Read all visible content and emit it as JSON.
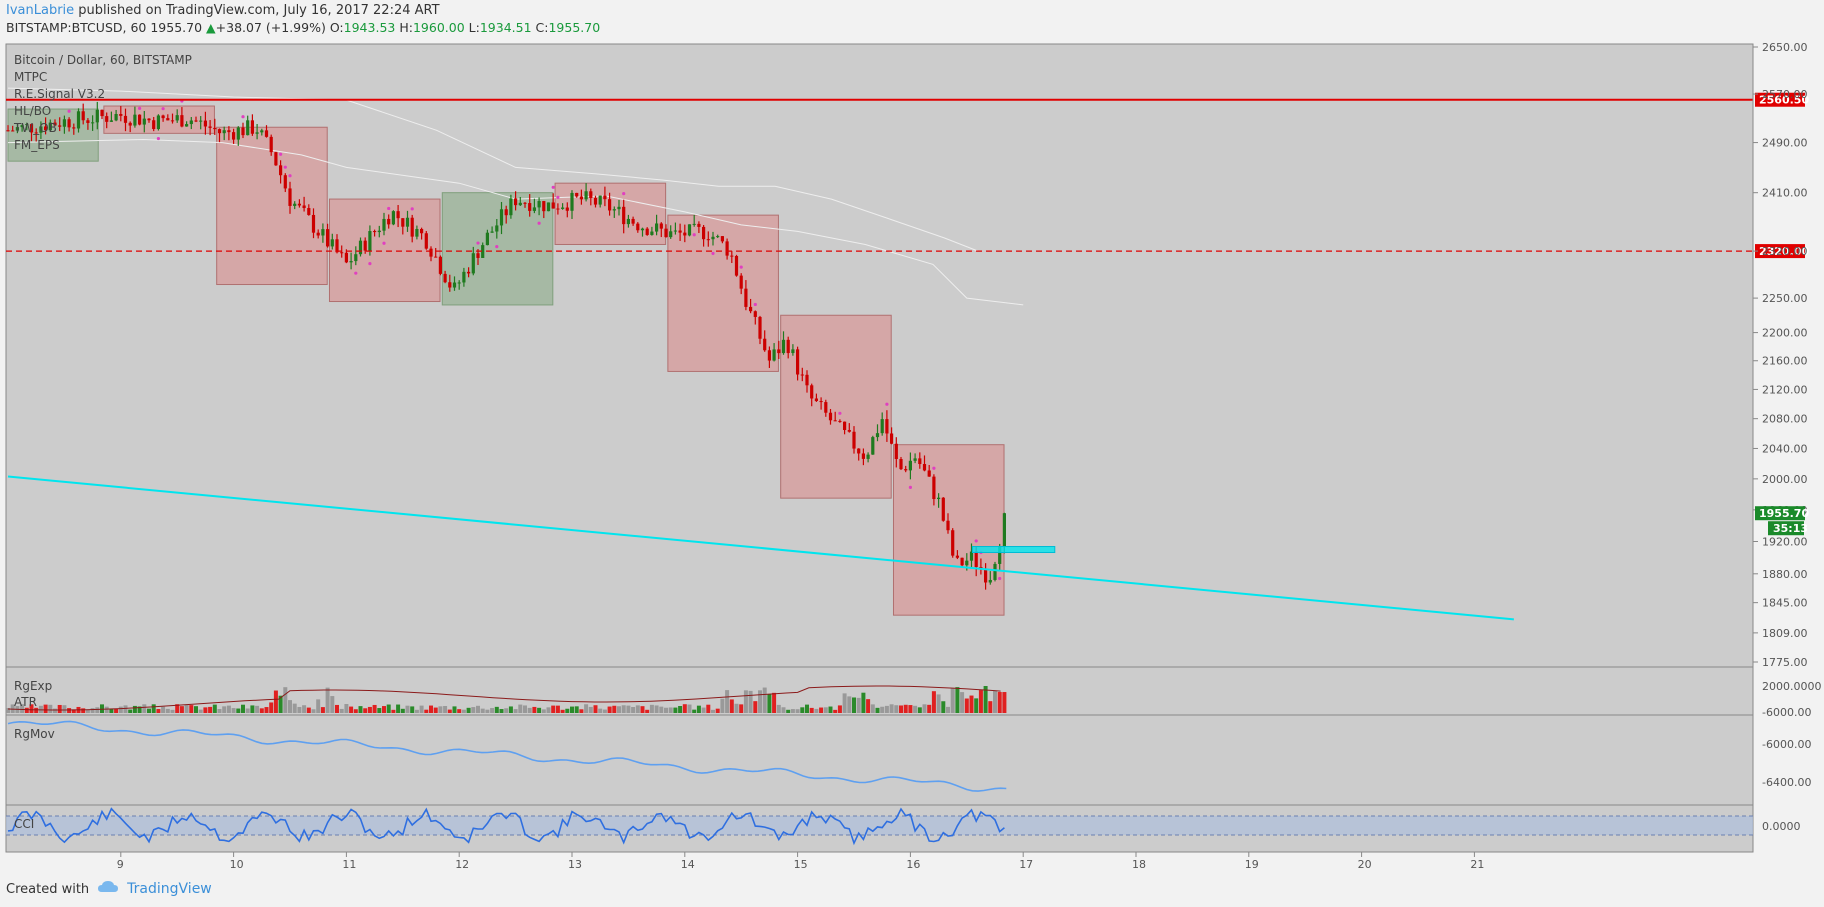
{
  "header": {
    "author": "IvanLabrie",
    "published": "published on TradingView.com, July 16, 2017 22:24 ART",
    "symbol": "BITSTAMP:BTCUSD, 60",
    "last": "1955.70",
    "change": "+38.07 (+1.99%)",
    "o_label": "O:",
    "o": "1943.53",
    "h_label": "H:",
    "h": "1960.00",
    "l_label": "L:",
    "l": "1934.51",
    "c_label": "C:",
    "c": "1955.70"
  },
  "legend": {
    "title": "Bitcoin / Dollar, 60, BITSTAMP",
    "items": [
      "MTPC",
      "R.E.Signal V3.2",
      "HL/BO",
      "TW_OB",
      "FM_EPS"
    ]
  },
  "panes": {
    "vol_labels": [
      "RgExp",
      "ATR"
    ],
    "vol_axis": "2000.0000",
    "mov_label": "RgMov",
    "mov_axis": [
      "-6000.00",
      "-6000.00",
      "-6400.00"
    ],
    "cci_label": "CCI",
    "cci_axis": "0.0000"
  },
  "footer": {
    "created": "Created with",
    "brand": "TradingView"
  },
  "colors": {
    "up": "#1f7a1f",
    "down": "#cc0000",
    "cyan": "#00e5ee",
    "level": "#e00000",
    "bg": "#cccccc"
  },
  "chart_data": {
    "type": "line",
    "x_ticks": [
      "9",
      "10",
      "11",
      "12",
      "13",
      "14",
      "15",
      "16",
      "17",
      "18",
      "19",
      "20",
      "21"
    ],
    "y_ticks": [
      2650,
      2570,
      2490,
      2410,
      2320,
      2250,
      2200,
      2160,
      2120,
      2080,
      2040,
      2000,
      1960,
      1920,
      1880,
      1845,
      1809,
      1775
    ],
    "y_tick_labels": [
      "2650.00",
      "2570.00",
      "2490.00",
      "2410.00",
      "2320.00",
      "2250.00",
      "2200.00",
      "2160.00",
      "2120.00",
      "2080.00",
      "2040.00",
      "2000.00",
      "1960.00",
      "1920.00",
      "1880.00",
      "1845.00",
      "1809.00",
      "1775.00"
    ],
    "price_path": [
      [
        8.0,
        2510
      ],
      [
        8.5,
        2525
      ],
      [
        9.0,
        2535
      ],
      [
        9.3,
        2525
      ],
      [
        9.6,
        2530
      ],
      [
        9.9,
        2505
      ],
      [
        10.2,
        2515
      ],
      [
        10.35,
        2470
      ],
      [
        10.5,
        2400
      ],
      [
        10.8,
        2340
      ],
      [
        11.0,
        2300
      ],
      [
        11.2,
        2340
      ],
      [
        11.4,
        2380
      ],
      [
        11.7,
        2340
      ],
      [
        11.95,
        2260
      ],
      [
        12.2,
        2330
      ],
      [
        12.5,
        2400
      ],
      [
        12.8,
        2390
      ],
      [
        13.1,
        2400
      ],
      [
        13.3,
        2390
      ],
      [
        13.6,
        2360
      ],
      [
        13.9,
        2345
      ],
      [
        14.2,
        2350
      ],
      [
        14.4,
        2320
      ],
      [
        14.55,
        2240
      ],
      [
        14.75,
        2160
      ],
      [
        14.9,
        2190
      ],
      [
        15.1,
        2110
      ],
      [
        15.4,
        2060
      ],
      [
        15.6,
        2030
      ],
      [
        15.75,
        2080
      ],
      [
        15.9,
        2010
      ],
      [
        16.05,
        2030
      ],
      [
        16.25,
        1970
      ],
      [
        16.4,
        1890
      ],
      [
        16.55,
        1900
      ],
      [
        16.7,
        1875
      ],
      [
        16.85,
        1955.7
      ]
    ],
    "boxes": [
      {
        "x0": 8.0,
        "x1": 8.8,
        "y0": 2460,
        "y1": 2545,
        "color": "green"
      },
      {
        "x0": 8.85,
        "x1": 9.83,
        "y0": 2505,
        "y1": 2550,
        "color": "red"
      },
      {
        "x0": 9.85,
        "x1": 10.83,
        "y0": 2270,
        "y1": 2515,
        "color": "red"
      },
      {
        "x0": 10.85,
        "x1": 11.83,
        "y0": 2245,
        "y1": 2400,
        "color": "red"
      },
      {
        "x0": 11.85,
        "x1": 12.83,
        "y0": 2240,
        "y1": 2410,
        "color": "green"
      },
      {
        "x0": 12.85,
        "x1": 13.83,
        "y0": 2330,
        "y1": 2425,
        "color": "red"
      },
      {
        "x0": 13.85,
        "x1": 14.83,
        "y0": 2145,
        "y1": 2375,
        "color": "red"
      },
      {
        "x0": 14.85,
        "x1": 15.83,
        "y0": 1975,
        "y1": 2225,
        "color": "red"
      },
      {
        "x0": 15.85,
        "x1": 16.83,
        "y0": 1830,
        "y1": 2045,
        "color": "red"
      }
    ],
    "levels": [
      {
        "value": 2560.5,
        "style": "solid",
        "label": "2560.50"
      },
      {
        "value": 2320.0,
        "style": "dashed",
        "label": "2320.00"
      }
    ],
    "trendline": {
      "x0": 8.0,
      "y0": 2003,
      "x1": 21.35,
      "y1": 1825
    },
    "last_price": {
      "value": 1955.7,
      "label": "1955.70",
      "countdown": "35:13"
    },
    "y_scale": "log"
  }
}
